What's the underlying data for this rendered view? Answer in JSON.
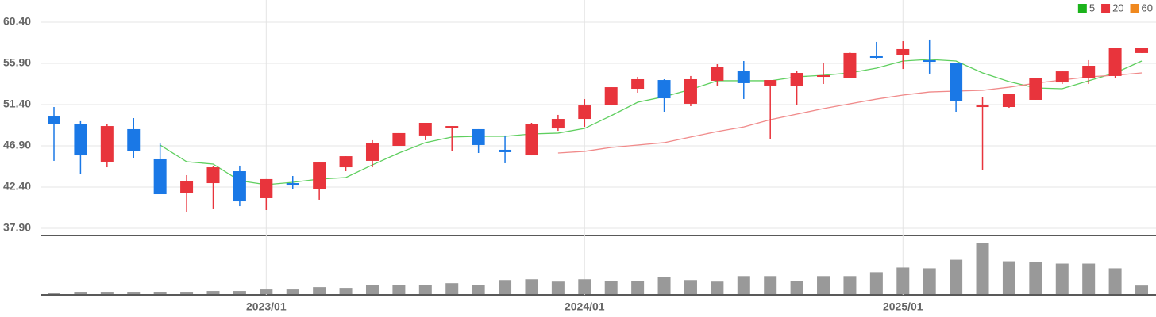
{
  "chart_data": {
    "type": "candlestick",
    "categories": [
      null,
      null,
      null,
      null,
      null,
      null,
      null,
      null,
      "2023/01",
      null,
      null,
      null,
      null,
      null,
      null,
      null,
      null,
      null,
      null,
      null,
      "2024/01",
      null,
      null,
      null,
      null,
      null,
      null,
      null,
      null,
      null,
      null,
      null,
      "2025/01",
      null,
      null,
      null,
      null,
      null,
      null,
      null,
      null,
      null
    ],
    "open": [
      50.1,
      49.24,
      45.17,
      48.72,
      45.43,
      41.71,
      42.83,
      44.13,
      41.19,
      42.83,
      42.14,
      44.56,
      45.26,
      46.9,
      48.03,
      48.89,
      48.72,
      46.47,
      45.86,
      48.8,
      49.84,
      51.4,
      53.13,
      54.08,
      51.49,
      54.0,
      55.12,
      53.48,
      53.39,
      54.43,
      54.34,
      56.68,
      56.77,
      56.25,
      55.9,
      51.14,
      51.14,
      51.92,
      53.82,
      54.34,
      54.52,
      57.03
    ],
    "high": [
      51.14,
      49.59,
      49.24,
      49.93,
      47.25,
      43.7,
      44.74,
      44.74,
      43.27,
      43.61,
      45.08,
      45.77,
      47.51,
      48.29,
      49.41,
      49.06,
      48.72,
      48.03,
      49.41,
      50.28,
      52.0,
      53.3,
      54.43,
      54.17,
      54.52,
      55.81,
      56.16,
      54.08,
      55.12,
      55.9,
      57.11,
      58.24,
      58.32,
      58.5,
      55.9,
      52.18,
      52.61,
      54.34,
      55.03,
      56.25,
      57.55,
      57.55
    ],
    "low": [
      45.26,
      43.79,
      44.56,
      45.6,
      41.62,
      39.63,
      39.98,
      40.32,
      39.89,
      42.14,
      41.02,
      44.13,
      44.56,
      46.9,
      47.51,
      46.38,
      46.12,
      45.0,
      45.86,
      48.54,
      48.97,
      51.31,
      52.7,
      50.62,
      51.23,
      53.48,
      52.01,
      47.68,
      51.4,
      53.65,
      54.26,
      56.42,
      55.29,
      54.78,
      50.62,
      44.3,
      51.05,
      51.92,
      53.65,
      53.65,
      54.34,
      57.03
    ],
    "close": [
      49.24,
      45.86,
      49.06,
      46.3,
      41.62,
      43.09,
      44.56,
      40.84,
      43.27,
      42.57,
      45.08,
      45.77,
      47.16,
      48.29,
      49.41,
      49.06,
      46.99,
      46.21,
      49.24,
      49.84,
      51.31,
      53.3,
      54.17,
      52.09,
      54.17,
      55.47,
      53.74,
      54.08,
      54.86,
      54.6,
      57.03,
      56.51,
      57.46,
      56.07,
      51.83,
      51.31,
      52.61,
      54.34,
      55.03,
      55.64,
      57.55,
      57.55
    ],
    "up_color": "#e8343c",
    "down_color": "#1a78e6",
    "ylim": [
      37.9,
      60.4
    ],
    "yticks": [
      {
        "value": 37.9,
        "label": "37.90"
      },
      {
        "value": 42.4,
        "label": "42.40"
      },
      {
        "value": 46.9,
        "label": "46.90"
      },
      {
        "value": 51.4,
        "label": "51.40"
      },
      {
        "value": 55.9,
        "label": "55.90"
      },
      {
        "value": 60.4,
        "label": "60.40"
      }
    ],
    "grid": true,
    "legend": "top-right",
    "moving_averages": [
      {
        "name": "5",
        "color": "#1bb31b",
        "line_color": "#5fcf5f",
        "values": [
          null,
          null,
          null,
          null,
          46.99,
          45.17,
          44.91,
          43.09,
          42.66,
          42.92,
          43.27,
          43.44,
          44.82,
          46.12,
          47.25,
          47.86,
          47.94,
          47.94,
          48.2,
          48.29,
          48.8,
          50.19,
          51.66,
          52.27,
          53.05,
          54.0,
          54.0,
          54.0,
          54.43,
          54.6,
          54.86,
          55.38,
          56.16,
          56.33,
          56.16,
          54.86,
          53.91,
          53.22,
          53.13,
          54.0,
          54.86,
          56.16
        ]
      },
      {
        "name": "20",
        "color": "#e8343c",
        "line_color": "#f08a8a",
        "values": [
          null,
          null,
          null,
          null,
          null,
          null,
          null,
          null,
          null,
          null,
          null,
          null,
          null,
          null,
          null,
          null,
          null,
          null,
          null,
          46.12,
          46.3,
          46.73,
          46.99,
          47.25,
          47.86,
          48.46,
          48.97,
          49.76,
          50.36,
          50.97,
          51.49,
          52.0,
          52.44,
          52.78,
          52.87,
          52.96,
          53.3,
          53.74,
          54.08,
          54.43,
          54.6,
          54.86
        ]
      },
      {
        "name": "60",
        "color": "#f0891f",
        "line_color": "#f0891f",
        "values": [
          null,
          null,
          null,
          null,
          null,
          null,
          null,
          null,
          null,
          null,
          null,
          null,
          null,
          null,
          null,
          null,
          null,
          null,
          null,
          null,
          null,
          null,
          null,
          null,
          null,
          null,
          null,
          null,
          null,
          null,
          null,
          null,
          null,
          null,
          null,
          null,
          null,
          null,
          null,
          null,
          null,
          null
        ]
      }
    ],
    "volume": {
      "color": "#999999",
      "ylim": [
        0,
        75
      ],
      "values": [
        1,
        2,
        2,
        2,
        3,
        2,
        4,
        4,
        6,
        6,
        9,
        7,
        12,
        12,
        12,
        14,
        12,
        18,
        19,
        16,
        19,
        17,
        17,
        22,
        18,
        16,
        23,
        23,
        17,
        23,
        23,
        28,
        34,
        33,
        44,
        65,
        42,
        41,
        39,
        39,
        33,
        11
      ]
    }
  }
}
